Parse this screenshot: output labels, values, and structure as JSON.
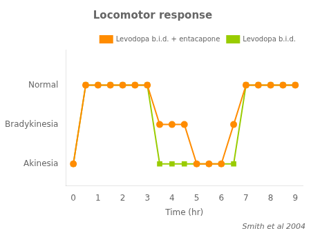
{
  "chart_data": {
    "type": "line",
    "title": "Locomotor response",
    "xlabel": "Time (hr)",
    "annotation": "Smith et al 2004",
    "x": [
      0,
      0.5,
      1,
      1.5,
      2,
      2.5,
      3,
      3.5,
      4,
      4.5,
      5,
      5.5,
      6,
      6.5,
      7,
      7.5,
      8,
      8.5,
      9
    ],
    "series": [
      {
        "name": "Levodopa b.i.d. + entacapone",
        "color": "#ff8c00",
        "marker": "circle",
        "values": [
          0,
          2,
          2,
          2,
          2,
          2,
          2,
          1,
          1,
          1,
          0,
          0,
          0,
          1,
          2,
          2,
          2,
          2,
          2
        ]
      },
      {
        "name": "Levodopa b.i.d.",
        "color": "#99cc00",
        "marker": "square",
        "values": [
          0,
          2,
          2,
          2,
          2,
          2,
          2,
          0,
          0,
          0,
          0,
          0,
          0,
          0,
          2,
          2,
          2,
          2,
          2
        ]
      }
    ],
    "xlim": [
      -0.3,
      9.3
    ],
    "xticks": [
      0,
      1,
      2,
      3,
      4,
      5,
      6,
      7,
      8,
      9
    ],
    "ylim": [
      -0.55,
      2.9
    ],
    "yticks": [
      {
        "value": 0,
        "label": "Akinesia"
      },
      {
        "value": 1,
        "label": "Bradykinesia"
      },
      {
        "value": 2,
        "label": "Normal"
      }
    ],
    "grid": false,
    "legend": "upper right"
  }
}
